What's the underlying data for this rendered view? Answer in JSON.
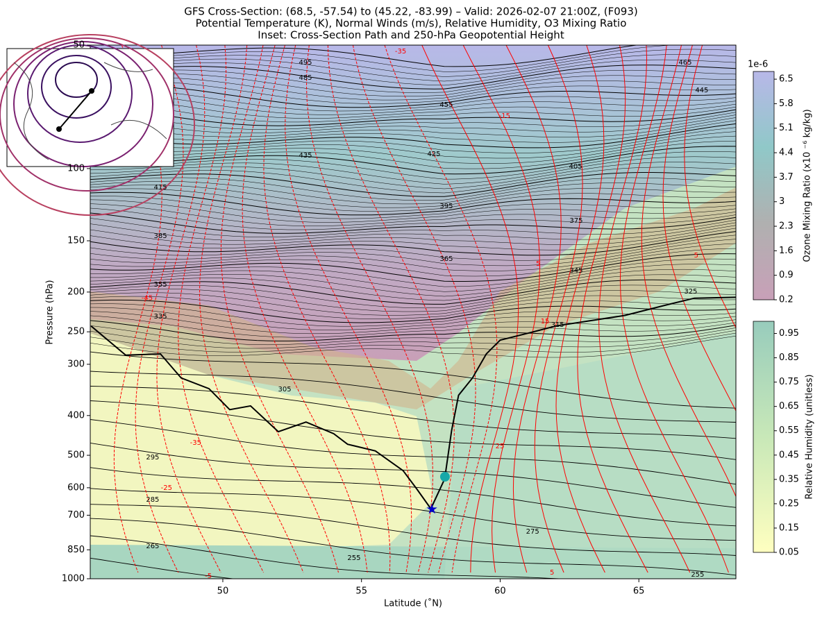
{
  "chart_data": {
    "type": "cross-section",
    "title": "GFS Cross-Section: (68.5, -57.54) to (45.22, -83.99) – Valid: 2026-02-07 21:00Z, (F093)",
    "subtitle": "Potential Temperature (K), Normal Winds (m/s), Relative Humidity, O3 Mixing Ratio",
    "subtitle2": "Inset: Cross-Section Path and 250-hPa Geopotential Height",
    "xlabel": "Latitude (˚N)",
    "ylabel": "Pressure (hPa)",
    "xlim": [
      45.22,
      68.5
    ],
    "xticks": [
      50,
      55,
      60,
      65
    ],
    "ylim": [
      1000,
      50
    ],
    "yscale": "log",
    "yticks": [
      1000,
      850,
      700,
      600,
      500,
      400,
      300,
      250,
      200,
      150,
      100,
      50
    ],
    "series": [
      {
        "color": "#000000",
        "x": [
          45.25,
          46.5,
          47.75,
          48.5,
          49.5,
          50.25,
          51.0,
          52.0,
          53.0,
          54.0,
          54.5,
          55.5,
          56.5,
          57.0,
          57.5,
          58.0,
          58.25,
          58.5,
          59.0,
          59.5,
          60.0,
          61.0,
          62.0,
          64.5,
          66.0,
          67.0,
          68.5
        ],
        "values": [
          242,
          285,
          283,
          324,
          344,
          387,
          379,
          438,
          415,
          443,
          470,
          488,
          545,
          605,
          675,
          571,
          435,
          357,
          324,
          283,
          262,
          252,
          242,
          228,
          215,
          207,
          206
        ]
      }
    ],
    "points": [
      {
        "x": 57.54,
        "y": 677,
        "color": "#0000cc",
        "marker": "star"
      },
      {
        "x": 58.01,
        "y": 564,
        "color": "#17a8a8",
        "marker": "circle"
      }
    ],
    "contour_labels": [
      {
        "text": "495",
        "x": 52.98,
        "y": 55.1,
        "color": "#000000"
      },
      {
        "text": "485",
        "x": 52.98,
        "y": 60.0,
        "color": "#000000"
      },
      {
        "text": "465",
        "x": 66.67,
        "y": 55.1,
        "color": "#000000"
      },
      {
        "text": "445",
        "x": 67.27,
        "y": 64.4,
        "color": "#000000"
      },
      {
        "text": "455",
        "x": 58.06,
        "y": 69.9,
        "color": "#000000"
      },
      {
        "text": "435",
        "x": 52.98,
        "y": 92.9,
        "color": "#000000"
      },
      {
        "text": "425",
        "x": 57.61,
        "y": 92.2,
        "color": "#000000"
      },
      {
        "text": "405",
        "x": 62.72,
        "y": 98.9,
        "color": "#000000"
      },
      {
        "text": "415",
        "x": 47.75,
        "y": 111.1,
        "color": "#000000"
      },
      {
        "text": "395",
        "x": 58.06,
        "y": 123.4,
        "color": "#000000"
      },
      {
        "text": "375",
        "x": 62.74,
        "y": 133.9,
        "color": "#000000"
      },
      {
        "text": "385",
        "x": 47.75,
        "y": 146.0,
        "color": "#000000"
      },
      {
        "text": "365",
        "x": 58.06,
        "y": 166.0,
        "color": "#000000"
      },
      {
        "text": "345",
        "x": 62.74,
        "y": 177.3,
        "color": "#000000"
      },
      {
        "text": "355",
        "x": 47.75,
        "y": 191.7,
        "color": "#000000"
      },
      {
        "text": "325",
        "x": 66.87,
        "y": 199.3,
        "color": "#000000"
      },
      {
        "text": "335",
        "x": 47.75,
        "y": 229.4,
        "color": "#000000"
      },
      {
        "text": "315",
        "x": 62.07,
        "y": 240.3,
        "color": "#000000"
      },
      {
        "text": "305",
        "x": 52.23,
        "y": 345,
        "color": "#000000"
      },
      {
        "text": "295",
        "x": 47.47,
        "y": 506,
        "color": "#000000"
      },
      {
        "text": "285",
        "x": 47.47,
        "y": 641,
        "color": "#000000"
      },
      {
        "text": "275",
        "x": 61.17,
        "y": 767,
        "color": "#000000"
      },
      {
        "text": "265",
        "x": 47.47,
        "y": 833,
        "color": "#000000"
      },
      {
        "text": "255",
        "x": 54.73,
        "y": 890,
        "color": "#000000"
      },
      {
        "text": "255",
        "x": 67.12,
        "y": 977,
        "color": "#000000"
      },
      {
        "text": "-35",
        "x": 56.41,
        "y": 51.8,
        "color": "#ff0000"
      },
      {
        "text": "-15",
        "x": 60.16,
        "y": 74.4,
        "color": "#ff0000"
      },
      {
        "text": "5",
        "x": 61.37,
        "y": 170.6,
        "color": "#ff0000"
      },
      {
        "text": "5",
        "x": 67.07,
        "y": 162.8,
        "color": "#ff0000"
      },
      {
        "text": "-45",
        "x": 47.27,
        "y": 207,
        "color": "#ff0000"
      },
      {
        "text": "15",
        "x": 61.62,
        "y": 235.6,
        "color": "#ff0000"
      },
      {
        "text": "-35",
        "x": 49.02,
        "y": 466,
        "color": "#ff0000"
      },
      {
        "text": "-25",
        "x": 47.97,
        "y": 600,
        "color": "#ff0000"
      },
      {
        "text": "25",
        "x": 59.99,
        "y": 475,
        "color": "#ff0000"
      },
      {
        "text": "-5",
        "x": 49.48,
        "y": 984,
        "color": "#ff0000"
      },
      {
        "text": "5",
        "x": 61.87,
        "y": 966,
        "color": "#ff0000"
      }
    ],
    "colorbars": [
      {
        "label": "Ozone Mixing Ratio (x10 ⁻⁶ kg/kg)",
        "offset_label": "1e-6",
        "lim": [
          0.2,
          6.72
        ],
        "ticks": [
          0.2,
          0.9,
          1.6,
          2.3,
          3.0,
          3.7,
          4.4,
          5.1,
          5.8,
          6.5
        ],
        "colors": [
          "#c8a0b8",
          "#b0b0b0",
          "#90c8c8",
          "#b8b8e8"
        ]
      },
      {
        "label": "Relative Humidity (unitless)",
        "lim": [
          0.05,
          1.0
        ],
        "ticks": [
          0.05,
          0.15,
          0.25,
          0.35,
          0.45,
          0.55,
          0.65,
          0.75,
          0.85,
          0.95
        ],
        "colors": [
          "#ffffc0",
          "#c8e8b8",
          "#98ccbc"
        ]
      }
    ]
  }
}
